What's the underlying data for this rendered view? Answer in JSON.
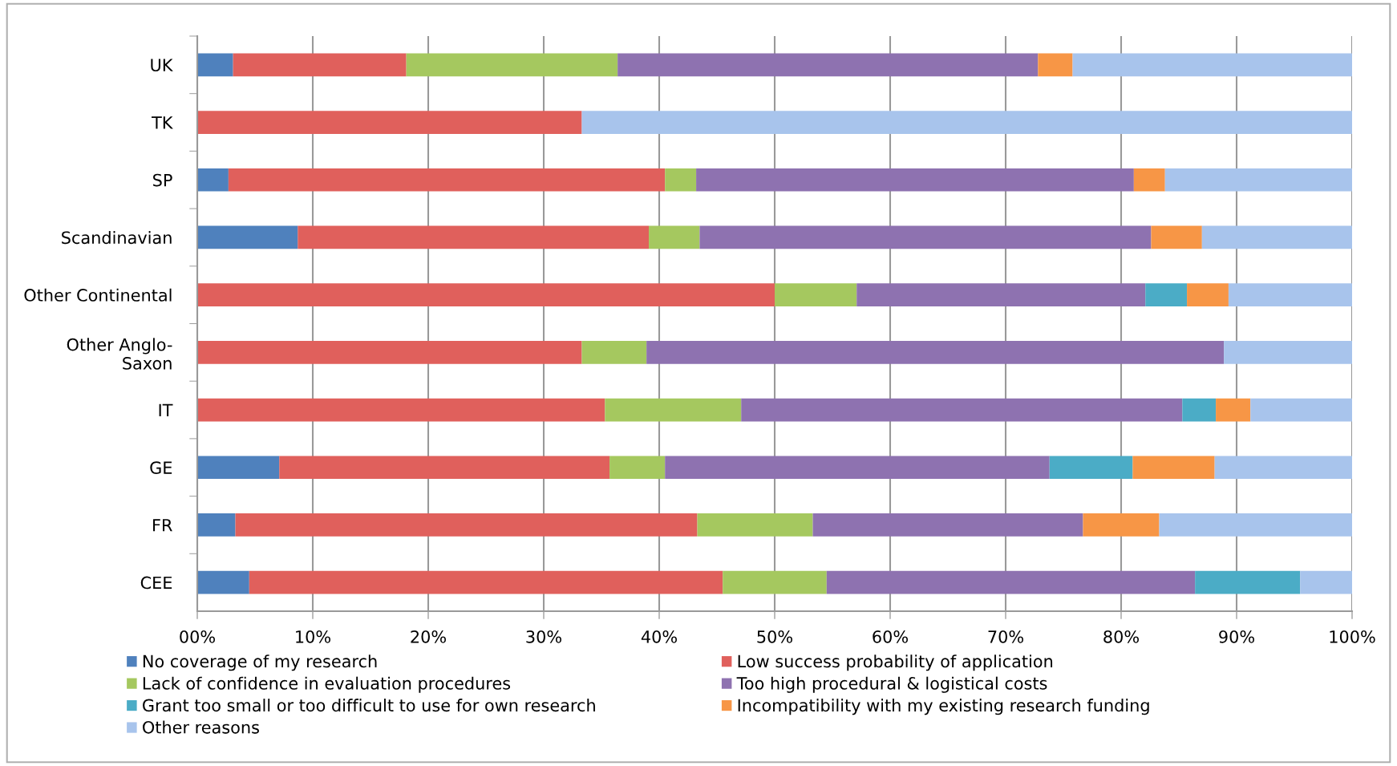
{
  "chart_data": {
    "type": "bar",
    "orientation": "horizontal",
    "stacked": true,
    "categories": [
      "UK",
      "TK",
      "SP",
      "Scandinavian",
      "Other Continental",
      "Other Anglo-\nSaxon",
      "IT",
      "GE",
      "FR",
      "CEE"
    ],
    "series": [
      {
        "name": "No coverage of my research",
        "color": "#4f81bd",
        "values": [
          3.1,
          null,
          2.7,
          8.7,
          null,
          null,
          null,
          7.1,
          3.3,
          4.5
        ]
      },
      {
        "name": "Low success probability of application",
        "color": "#e0605c",
        "values": [
          15.0,
          33.3,
          37.8,
          30.4,
          50.0,
          33.3,
          35.3,
          28.6,
          40.0,
          41.0
        ]
      },
      {
        "name": "Lack of confidence in evaluation procedures",
        "color": "#a5c85f",
        "values": [
          18.3,
          null,
          2.7,
          4.4,
          7.1,
          5.6,
          11.8,
          4.8,
          10.0,
          9.0
        ]
      },
      {
        "name": "Too high procedural & logistical costs",
        "color": "#8e72b0",
        "values": [
          36.4,
          null,
          37.9,
          39.1,
          25.0,
          50.0,
          38.2,
          33.3,
          23.4,
          31.9
        ]
      },
      {
        "name": "Grant too small or too difficult to use for own research",
        "color": "#4bacc6",
        "values": [
          null,
          null,
          null,
          null,
          3.6,
          null,
          2.9,
          7.2,
          null,
          9.1
        ]
      },
      {
        "name": "Incompatibility with my existing research funding",
        "color": "#f79646",
        "values": [
          3.0,
          null,
          2.7,
          4.4,
          3.6,
          null,
          3.0,
          7.1,
          6.6,
          null
        ]
      },
      {
        "name": "Other reasons",
        "color": "#a8c4ec",
        "values": [
          24.2,
          66.7,
          16.2,
          13.0,
          10.7,
          11.1,
          8.8,
          11.9,
          16.7,
          4.5
        ]
      }
    ],
    "xlim": [
      0,
      100
    ],
    "xticks": [
      {
        "value": 0,
        "label": "00%"
      },
      {
        "value": 10,
        "label": "10%"
      },
      {
        "value": 20,
        "label": "20%"
      },
      {
        "value": 30,
        "label": "30%"
      },
      {
        "value": 40,
        "label": "40%"
      },
      {
        "value": 50,
        "label": "50%"
      },
      {
        "value": 60,
        "label": "60%"
      },
      {
        "value": 70,
        "label": "70%"
      },
      {
        "value": 80,
        "label": "80%"
      },
      {
        "value": 90,
        "label": "90%"
      },
      {
        "value": 100,
        "label": "100%"
      }
    ],
    "grid": "x",
    "legend": "bottom"
  }
}
